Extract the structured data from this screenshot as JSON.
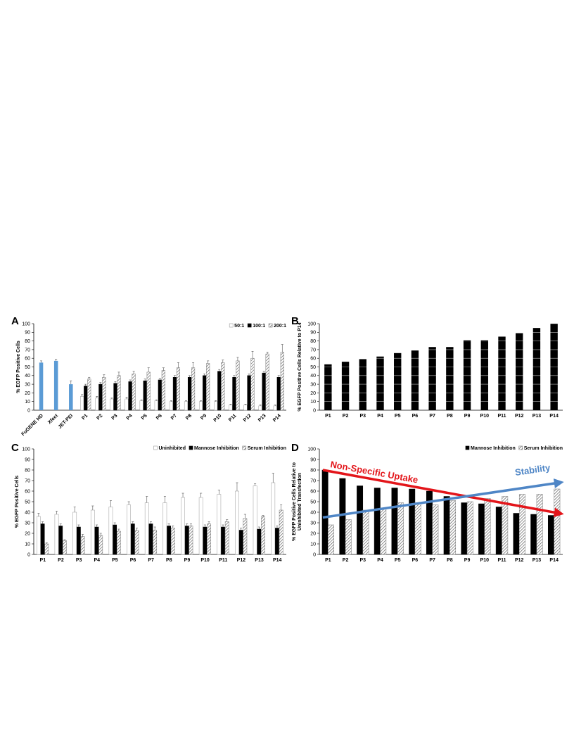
{
  "colors": {
    "blue": "#5b9bd5",
    "black": "#000000",
    "red": "#e3151a",
    "trend_blue": "#4f86c6"
  },
  "chart_data": [
    {
      "panel": "A",
      "type": "bar",
      "ylabel": "% EGFP Positive Cells",
      "ylim": [
        0,
        100
      ],
      "yticks": [
        0,
        10,
        20,
        30,
        40,
        50,
        60,
        70,
        80,
        90,
        100
      ],
      "legend_position": "top-right",
      "reference_categories": [
        "FuGENE HD",
        "Xfect",
        "JET-PEI"
      ],
      "reference_values": [
        55,
        57,
        30
      ],
      "reference_errors": [
        2,
        2,
        4
      ],
      "categories": [
        "P1",
        "P2",
        "P3",
        "P4",
        "P5",
        "P6",
        "P7",
        "P8",
        "P9",
        "P10",
        "P11",
        "P12",
        "P13",
        "P14"
      ],
      "series": [
        {
          "name": "50:1",
          "values": [
            16,
            14,
            13,
            13,
            11,
            11,
            10,
            10,
            10,
            10,
            6,
            6,
            5,
            5
          ],
          "errors": [
            2,
            2,
            1,
            2,
            1,
            1,
            1,
            1,
            1,
            1,
            1,
            1,
            1,
            1
          ]
        },
        {
          "name": "100:1",
          "values": [
            28,
            30,
            31,
            33,
            34,
            35,
            38,
            38,
            40,
            45,
            38,
            40,
            43,
            38
          ],
          "errors": [
            2,
            2,
            2,
            2,
            2,
            2,
            2,
            2,
            2,
            2,
            2,
            2,
            2,
            2
          ]
        },
        {
          "name": "200:1",
          "values": [
            36,
            38,
            40,
            42,
            44,
            46,
            49,
            49,
            54,
            55,
            57,
            60,
            65,
            67
          ],
          "errors": [
            2,
            3,
            4,
            3,
            5,
            3,
            6,
            6,
            3,
            3,
            4,
            8,
            2,
            9
          ]
        }
      ]
    },
    {
      "panel": "B",
      "type": "bar",
      "ylabel": "% EGFP Positive Cells Relative to P14",
      "ylim": [
        0,
        100
      ],
      "yticks": [
        0,
        10,
        20,
        30,
        40,
        50,
        60,
        70,
        80,
        90,
        100
      ],
      "categories": [
        "P1",
        "P2",
        "P3",
        "P4",
        "P5",
        "P6",
        "P7",
        "P8",
        "P9",
        "P10",
        "P11",
        "P12",
        "P13",
        "P14"
      ],
      "values": [
        53,
        56,
        59,
        62,
        66,
        69,
        73,
        73,
        81,
        81,
        85,
        89,
        95,
        100
      ]
    },
    {
      "panel": "C",
      "type": "bar",
      "ylabel": "% EGFP Positive Cells",
      "ylim": [
        0,
        100
      ],
      "yticks": [
        0,
        10,
        20,
        30,
        40,
        50,
        60,
        70,
        80,
        90,
        100
      ],
      "legend_position": "top-right",
      "categories": [
        "P1",
        "P2",
        "P3",
        "P4",
        "P5",
        "P6",
        "P7",
        "P8",
        "P9",
        "P10",
        "P11",
        "P12",
        "P13",
        "P14"
      ],
      "series": [
        {
          "name": "Uninhibited",
          "values": [
            36,
            38,
            40,
            42,
            45,
            47,
            49,
            49,
            54,
            54,
            57,
            60,
            65,
            68
          ],
          "errors": [
            3,
            3,
            5,
            4,
            6,
            3,
            6,
            6,
            4,
            4,
            4,
            8,
            2,
            9
          ]
        },
        {
          "name": "Mannose Inhibition",
          "values": [
            29,
            27,
            26,
            26,
            28,
            29,
            29,
            27,
            27,
            26,
            26,
            23,
            24,
            25
          ],
          "errors": [
            2,
            2,
            2,
            2,
            2,
            2,
            2,
            2,
            2,
            2,
            2,
            2,
            2,
            2
          ]
        },
        {
          "name": "Serum Inhibition",
          "values": [
            10,
            13,
            17,
            18,
            22,
            23,
            23,
            25,
            27,
            29,
            31,
            34,
            36,
            42
          ],
          "errors": [
            1,
            1,
            2,
            2,
            2,
            2,
            3,
            2,
            2,
            2,
            2,
            4,
            1,
            5
          ]
        }
      ]
    },
    {
      "panel": "D",
      "type": "bar",
      "ylabel": "% EGFP Positive Cells Relative to Uninhibited Transfection",
      "ylim": [
        0,
        100
      ],
      "yticks": [
        0,
        10,
        20,
        30,
        40,
        50,
        60,
        70,
        80,
        90,
        100
      ],
      "legend_position": "top-right",
      "categories": [
        "P1",
        "P2",
        "P3",
        "P4",
        "P5",
        "P6",
        "P7",
        "P8",
        "P9",
        "P10",
        "P11",
        "P12",
        "P13",
        "P14"
      ],
      "series": [
        {
          "name": "Mannose Inhibition",
          "values": [
            80,
            72,
            65,
            63,
            63,
            62,
            60,
            55,
            49,
            48,
            45,
            39,
            38,
            37
          ]
        },
        {
          "name": "Serum Inhibition",
          "values": [
            28,
            33,
            42,
            43,
            49,
            49,
            47,
            51,
            50,
            53,
            55,
            57,
            57,
            62
          ]
        }
      ],
      "annotations": [
        {
          "text": "Non-Specific Uptake",
          "color": "#e3151a",
          "from": [
            "P1",
            80
          ],
          "to": [
            "P14",
            39
          ]
        },
        {
          "text": "Stability",
          "color": "#4f86c6",
          "from": [
            "P1",
            35
          ],
          "to": [
            "P14",
            68
          ]
        }
      ]
    }
  ]
}
